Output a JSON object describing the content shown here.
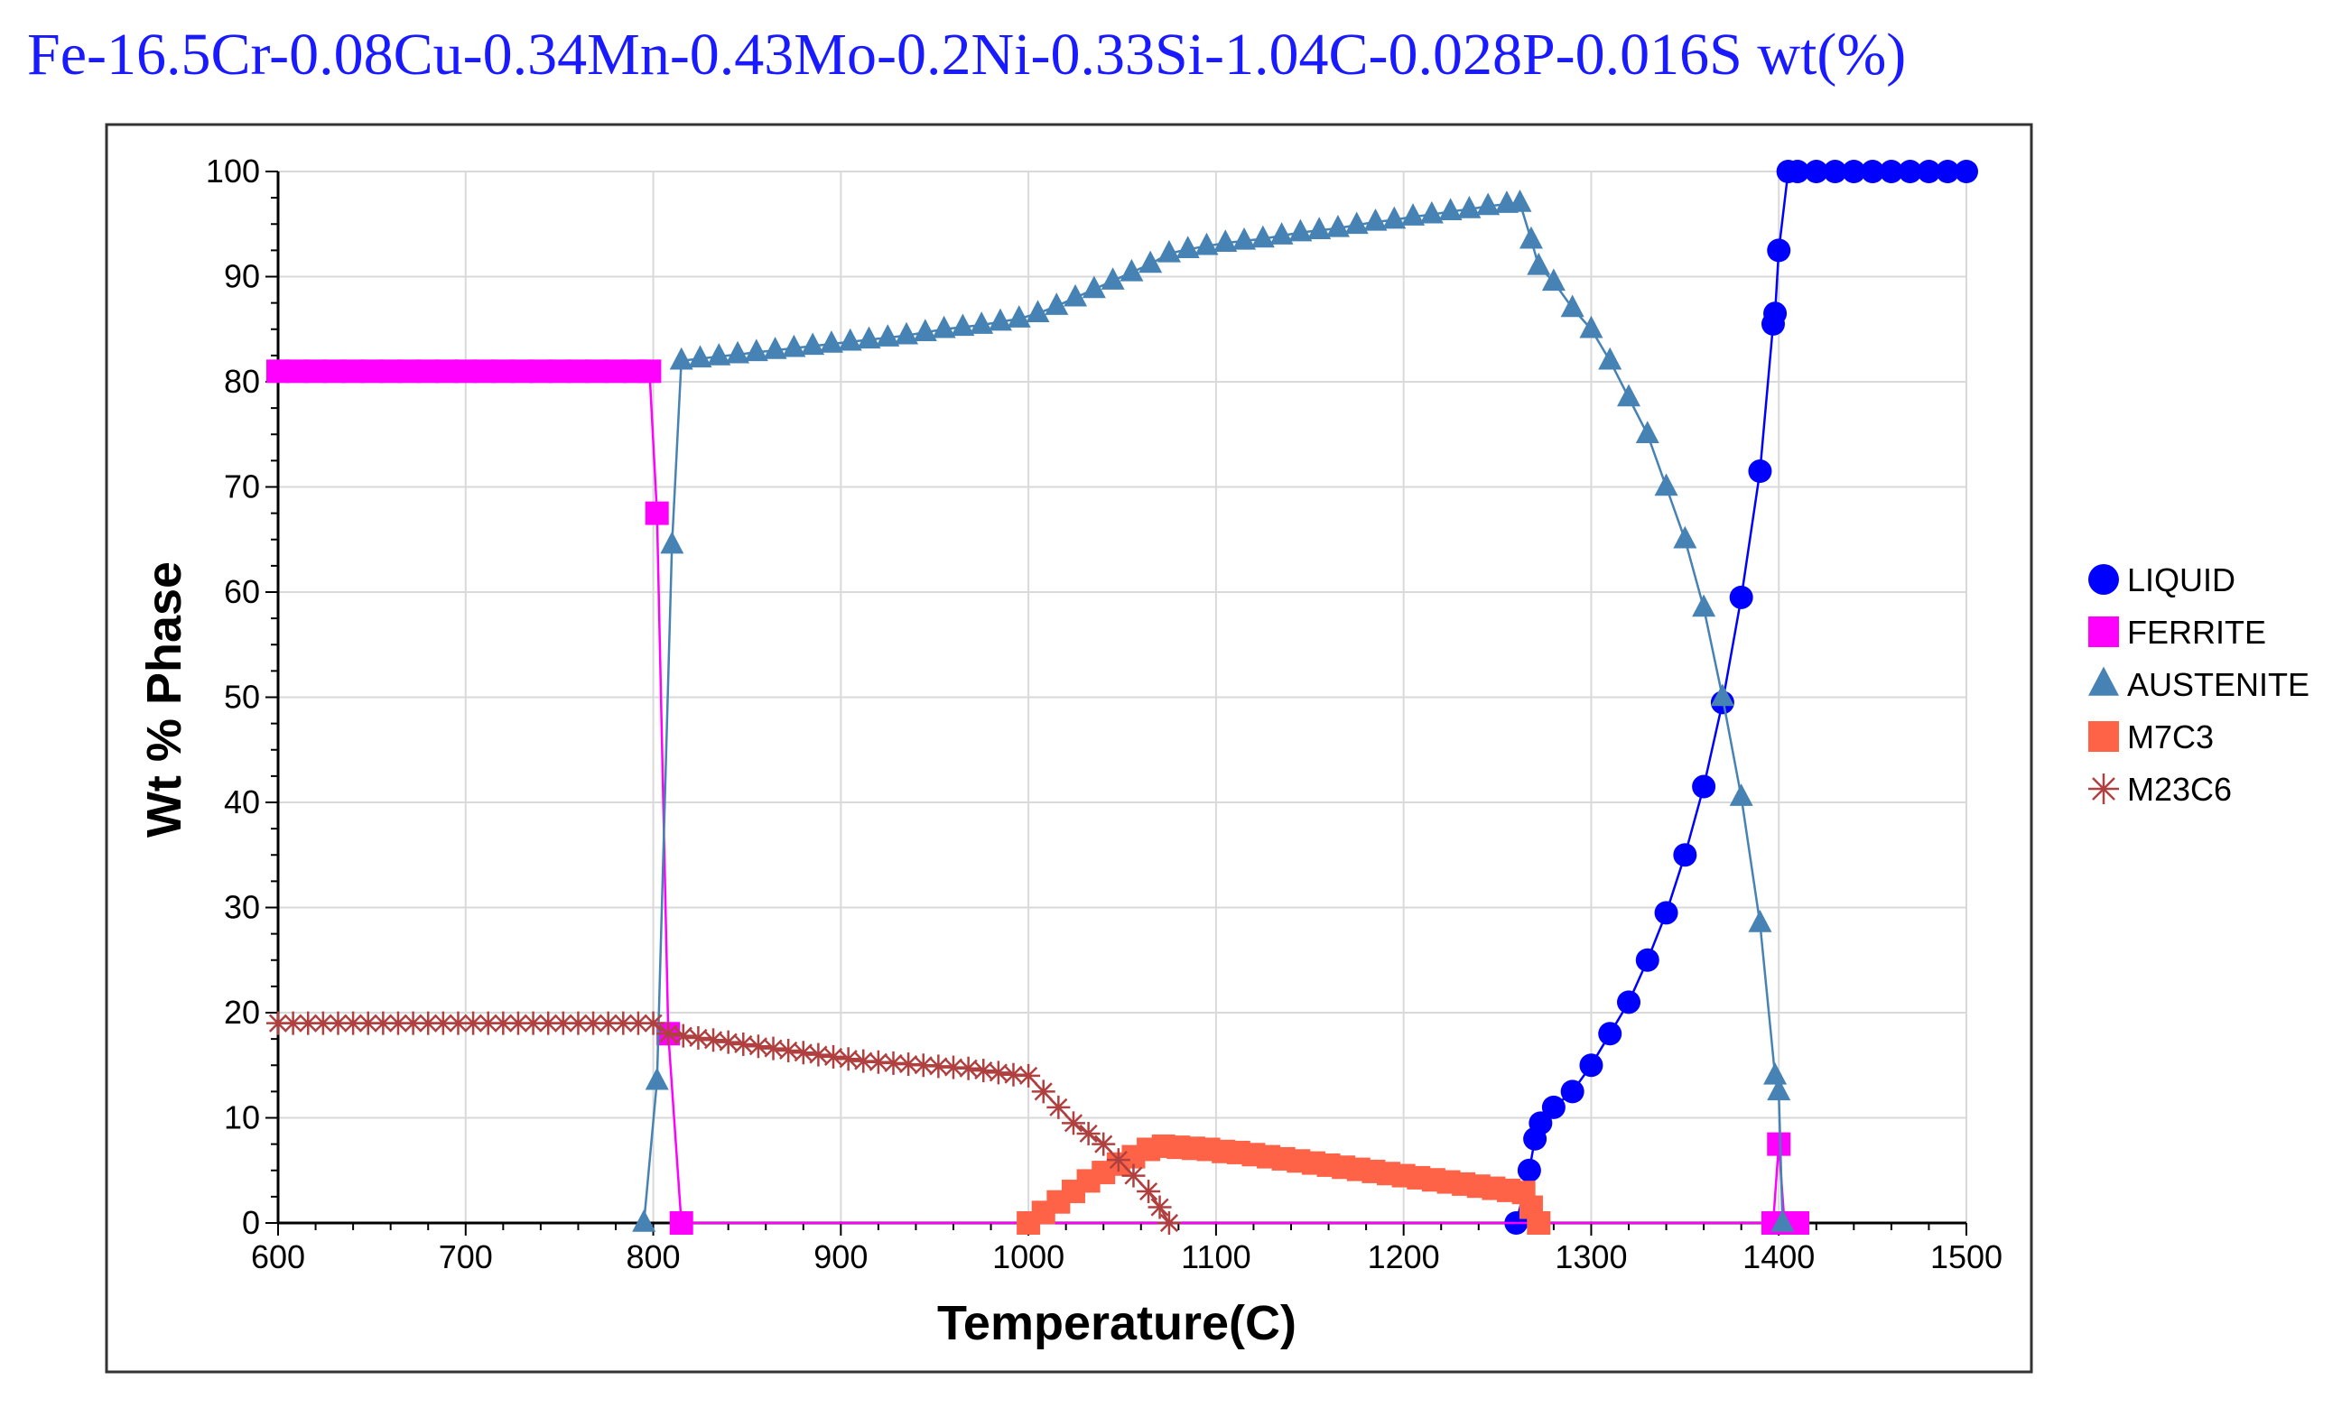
{
  "chart_data": {
    "type": "line",
    "title": "Fe-16.5Cr-0.08Cu-0.34Mn-0.43Mo-0.2Ni-0.33Si-1.04C-0.028P-0.016S wt(%)",
    "xlabel": "Temperature(C)",
    "ylabel": "Wt % Phase",
    "xlim": [
      600,
      1500
    ],
    "ylim": [
      0,
      100
    ],
    "xticks": [
      "600",
      "700",
      "800",
      "900",
      "1000",
      "1100",
      "1200",
      "1300",
      "1400",
      "1500"
    ],
    "yticks": [
      "0",
      "10",
      "20",
      "30",
      "40",
      "50",
      "60",
      "70",
      "80",
      "90",
      "100"
    ],
    "grid": true,
    "legend_position": "right",
    "series": [
      {
        "name": "LIQUID",
        "color": "#0000ff",
        "marker": "circle",
        "points": [
          [
            1260,
            0
          ],
          [
            1267,
            5
          ],
          [
            1270,
            8
          ],
          [
            1273,
            9.5
          ],
          [
            1280,
            11
          ],
          [
            1290,
            12.5
          ],
          [
            1300,
            15
          ],
          [
            1310,
            18
          ],
          [
            1320,
            21
          ],
          [
            1330,
            25
          ],
          [
            1340,
            29.5
          ],
          [
            1350,
            35
          ],
          [
            1360,
            41.5
          ],
          [
            1370,
            49.5
          ],
          [
            1380,
            59.5
          ],
          [
            1390,
            71.5
          ],
          [
            1397,
            85.5
          ],
          [
            1398,
            86.5
          ],
          [
            1400,
            92.5
          ],
          [
            1405,
            100
          ],
          [
            1410,
            100
          ],
          [
            1420,
            100
          ],
          [
            1430,
            100
          ],
          [
            1440,
            100
          ],
          [
            1450,
            100
          ],
          [
            1460,
            100
          ],
          [
            1470,
            100
          ],
          [
            1480,
            100
          ],
          [
            1490,
            100
          ],
          [
            1500,
            100
          ]
        ]
      },
      {
        "name": "FERRITE",
        "color": "#ff00ff",
        "marker": "square",
        "points": [
          [
            600,
            81
          ],
          [
            610,
            81
          ],
          [
            620,
            81
          ],
          [
            630,
            81
          ],
          [
            640,
            81
          ],
          [
            650,
            81
          ],
          [
            660,
            81
          ],
          [
            670,
            81
          ],
          [
            680,
            81
          ],
          [
            690,
            81
          ],
          [
            700,
            81
          ],
          [
            710,
            81
          ],
          [
            720,
            81
          ],
          [
            730,
            81
          ],
          [
            740,
            81
          ],
          [
            750,
            81
          ],
          [
            760,
            81
          ],
          [
            770,
            81
          ],
          [
            780,
            81
          ],
          [
            790,
            81
          ],
          [
            798,
            81
          ],
          [
            802,
            67.5
          ],
          [
            808,
            18
          ],
          [
            815,
            0
          ],
          [
            1397,
            0
          ],
          [
            1400,
            7.5
          ],
          [
            1403,
            0
          ],
          [
            1410,
            0
          ]
        ]
      },
      {
        "name": "AUSTENITE",
        "color": "#4682b4",
        "marker": "triangle",
        "points": [
          [
            795,
            0
          ],
          [
            802,
            13.5
          ],
          [
            810,
            64.5
          ],
          [
            815,
            82
          ],
          [
            825,
            82.2
          ],
          [
            835,
            82.4
          ],
          [
            845,
            82.6
          ],
          [
            855,
            82.8
          ],
          [
            865,
            83
          ],
          [
            875,
            83.2
          ],
          [
            885,
            83.4
          ],
          [
            895,
            83.6
          ],
          [
            905,
            83.8
          ],
          [
            915,
            84
          ],
          [
            925,
            84.2
          ],
          [
            935,
            84.4
          ],
          [
            945,
            84.7
          ],
          [
            955,
            85
          ],
          [
            965,
            85.2
          ],
          [
            975,
            85.4
          ],
          [
            985,
            85.7
          ],
          [
            995,
            86
          ],
          [
            1005,
            86.5
          ],
          [
            1015,
            87.2
          ],
          [
            1025,
            88
          ],
          [
            1035,
            88.8
          ],
          [
            1045,
            89.6
          ],
          [
            1055,
            90.4
          ],
          [
            1065,
            91.2
          ],
          [
            1075,
            92.2
          ],
          [
            1085,
            92.6
          ],
          [
            1095,
            92.9
          ],
          [
            1105,
            93.2
          ],
          [
            1115,
            93.4
          ],
          [
            1125,
            93.6
          ],
          [
            1135,
            93.9
          ],
          [
            1145,
            94.2
          ],
          [
            1155,
            94.4
          ],
          [
            1165,
            94.6
          ],
          [
            1175,
            94.9
          ],
          [
            1185,
            95.2
          ],
          [
            1195,
            95.4
          ],
          [
            1205,
            95.7
          ],
          [
            1215,
            95.9
          ],
          [
            1225,
            96.2
          ],
          [
            1235,
            96.4
          ],
          [
            1245,
            96.7
          ],
          [
            1255,
            96.9
          ],
          [
            1262,
            97
          ],
          [
            1268,
            93.5
          ],
          [
            1272,
            91
          ],
          [
            1280,
            89.5
          ],
          [
            1290,
            87
          ],
          [
            1300,
            85
          ],
          [
            1310,
            82
          ],
          [
            1320,
            78.5
          ],
          [
            1330,
            75
          ],
          [
            1340,
            70
          ],
          [
            1350,
            65
          ],
          [
            1360,
            58.5
          ],
          [
            1370,
            50
          ],
          [
            1380,
            40.5
          ],
          [
            1390,
            28.5
          ],
          [
            1398,
            14
          ],
          [
            1400,
            12.5
          ],
          [
            1402,
            0
          ]
        ]
      },
      {
        "name": "M7C3",
        "color": "#ff6347",
        "marker": "square",
        "points": [
          [
            1000,
            0
          ],
          [
            1008,
            1
          ],
          [
            1016,
            2
          ],
          [
            1024,
            3
          ],
          [
            1032,
            4
          ],
          [
            1040,
            4.8
          ],
          [
            1048,
            5.6
          ],
          [
            1056,
            6.3
          ],
          [
            1064,
            7
          ],
          [
            1072,
            7.3
          ],
          [
            1080,
            7.2
          ],
          [
            1088,
            7.1
          ],
          [
            1096,
            7
          ],
          [
            1104,
            6.8
          ],
          [
            1112,
            6.7
          ],
          [
            1120,
            6.5
          ],
          [
            1128,
            6.3
          ],
          [
            1136,
            6.1
          ],
          [
            1144,
            5.9
          ],
          [
            1152,
            5.7
          ],
          [
            1160,
            5.5
          ],
          [
            1168,
            5.3
          ],
          [
            1176,
            5.1
          ],
          [
            1184,
            4.9
          ],
          [
            1192,
            4.7
          ],
          [
            1200,
            4.5
          ],
          [
            1208,
            4.3
          ],
          [
            1216,
            4.1
          ],
          [
            1224,
            3.9
          ],
          [
            1232,
            3.7
          ],
          [
            1240,
            3.5
          ],
          [
            1248,
            3.3
          ],
          [
            1256,
            3.1
          ],
          [
            1264,
            2.9
          ],
          [
            1268,
            1.5
          ],
          [
            1272,
            0
          ]
        ]
      },
      {
        "name": "M23C6",
        "color": "#b04040",
        "marker": "star",
        "points": [
          [
            600,
            19
          ],
          [
            608,
            19
          ],
          [
            616,
            19
          ],
          [
            624,
            19
          ],
          [
            632,
            19
          ],
          [
            640,
            19
          ],
          [
            648,
            19
          ],
          [
            656,
            19
          ],
          [
            664,
            19
          ],
          [
            672,
            19
          ],
          [
            680,
            19
          ],
          [
            688,
            19
          ],
          [
            696,
            19
          ],
          [
            704,
            19
          ],
          [
            712,
            19
          ],
          [
            720,
            19
          ],
          [
            728,
            19
          ],
          [
            736,
            19
          ],
          [
            744,
            19
          ],
          [
            752,
            19
          ],
          [
            760,
            19
          ],
          [
            768,
            19
          ],
          [
            776,
            19
          ],
          [
            784,
            19
          ],
          [
            792,
            19
          ],
          [
            800,
            19
          ],
          [
            808,
            18
          ],
          [
            816,
            17.8
          ],
          [
            824,
            17.6
          ],
          [
            832,
            17.4
          ],
          [
            840,
            17.2
          ],
          [
            848,
            17
          ],
          [
            856,
            16.8
          ],
          [
            864,
            16.6
          ],
          [
            872,
            16.4
          ],
          [
            880,
            16.2
          ],
          [
            888,
            16
          ],
          [
            896,
            15.8
          ],
          [
            904,
            15.6
          ],
          [
            912,
            15.4
          ],
          [
            920,
            15.3
          ],
          [
            928,
            15.2
          ],
          [
            936,
            15.1
          ],
          [
            944,
            15
          ],
          [
            952,
            14.9
          ],
          [
            960,
            14.8
          ],
          [
            968,
            14.7
          ],
          [
            976,
            14.5
          ],
          [
            984,
            14.3
          ],
          [
            992,
            14.1
          ],
          [
            1000,
            14
          ],
          [
            1008,
            12.5
          ],
          [
            1016,
            11
          ],
          [
            1024,
            9.5
          ],
          [
            1032,
            8.5
          ],
          [
            1040,
            7.5
          ],
          [
            1048,
            6
          ],
          [
            1056,
            4.5
          ],
          [
            1064,
            3
          ],
          [
            1070,
            1.5
          ],
          [
            1075,
            0
          ]
        ]
      }
    ]
  }
}
